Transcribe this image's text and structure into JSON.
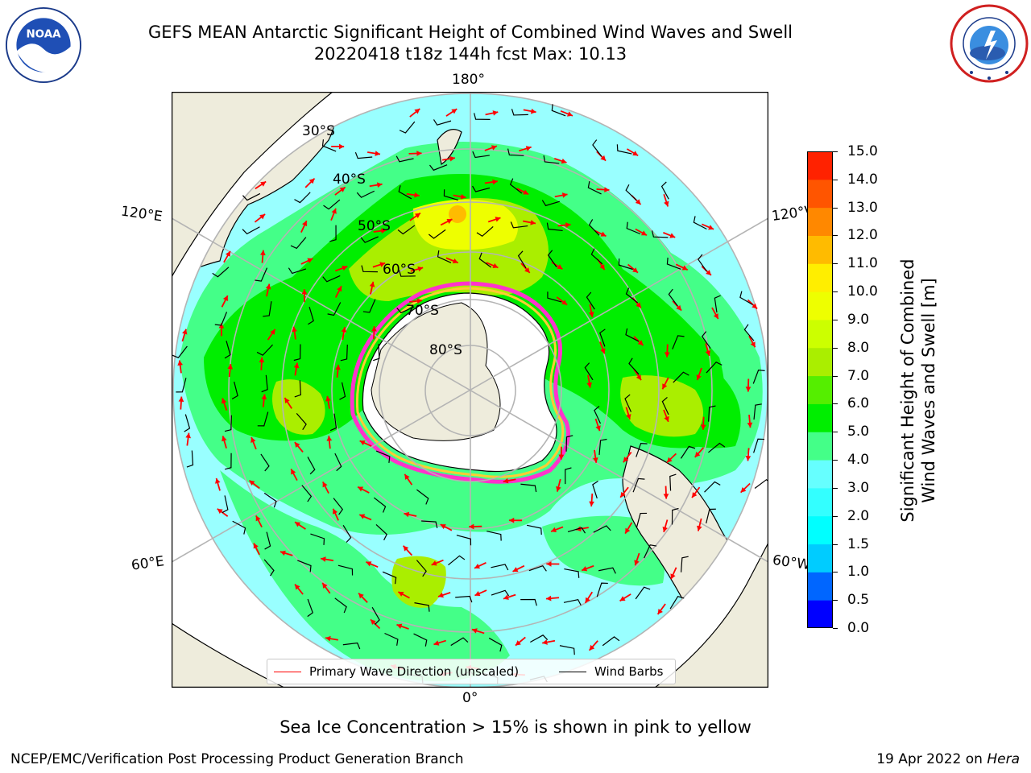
{
  "header": {
    "title_line1": "GEFS MEAN Antarctic Significant Height of Combined Wind Waves and Swell",
    "title_line2": "20220418 t18z 144h fcst   Max: 10.13"
  },
  "logos": {
    "left": "NOAA logo",
    "left_text": "NATIONAL OCEANIC AND ATMOSPHERIC ADMINISTRATION · U.S. DEPARTMENT OF COMMERCE",
    "right": "National Weather Service logo",
    "right_text": "NATIONAL WEATHER SERVICE"
  },
  "map": {
    "projection": "south polar stereographic",
    "longitude_labels": {
      "top": "180°",
      "bottom": "0°",
      "left_upper": "120°E",
      "right_upper": "120°W",
      "left_lower": "60°E",
      "right_lower": "60°W"
    },
    "latitude_labels": [
      "30°S",
      "40°S",
      "50°S",
      "60°S",
      "70°S",
      "80°S"
    ],
    "max_value": 10.13,
    "colors": {
      "land": "#eeecdc",
      "ice_edge_pink": "#ff33cc",
      "ice_edge_yellow": "#ffcc33",
      "wave_arrow": "#ff0000",
      "wind_barb": "#000000",
      "graticule": "#b4b4b4"
    }
  },
  "colorbar": {
    "label": "Significant Height of Combined\nWind Waves and Swell [m]",
    "ticks": [
      "0.0",
      "0.5",
      "1.0",
      "1.5",
      "2.0",
      "3.0",
      "4.0",
      "5.0",
      "6.0",
      "7.0",
      "8.0",
      "9.0",
      "10.0",
      "11.0",
      "12.0",
      "13.0",
      "14.0",
      "15.0"
    ],
    "bin_colors": [
      "#0000ff",
      "#0066ff",
      "#00ccff",
      "#00ffff",
      "#33ffff",
      "#66ffff",
      "#44ff88",
      "#00ee00",
      "#55ee00",
      "#aaee00",
      "#ccff00",
      "#eeff00",
      "#ffee00",
      "#ffbb00",
      "#ff8800",
      "#ff5500",
      "#ff2200"
    ]
  },
  "legend": {
    "items": [
      {
        "label": "Primary Wave Direction (unscaled)",
        "color": "#ff0000"
      },
      {
        "label": "Wind Barbs",
        "color": "#000000"
      }
    ]
  },
  "footer": {
    "note": "Sea Ice Concentration > 15% is shown in pink to yellow",
    "credit": "NCEP/EMC/Verification Post Processing Product Generation Branch",
    "date": "19 Apr 2022 on",
    "machine": "Hera"
  }
}
